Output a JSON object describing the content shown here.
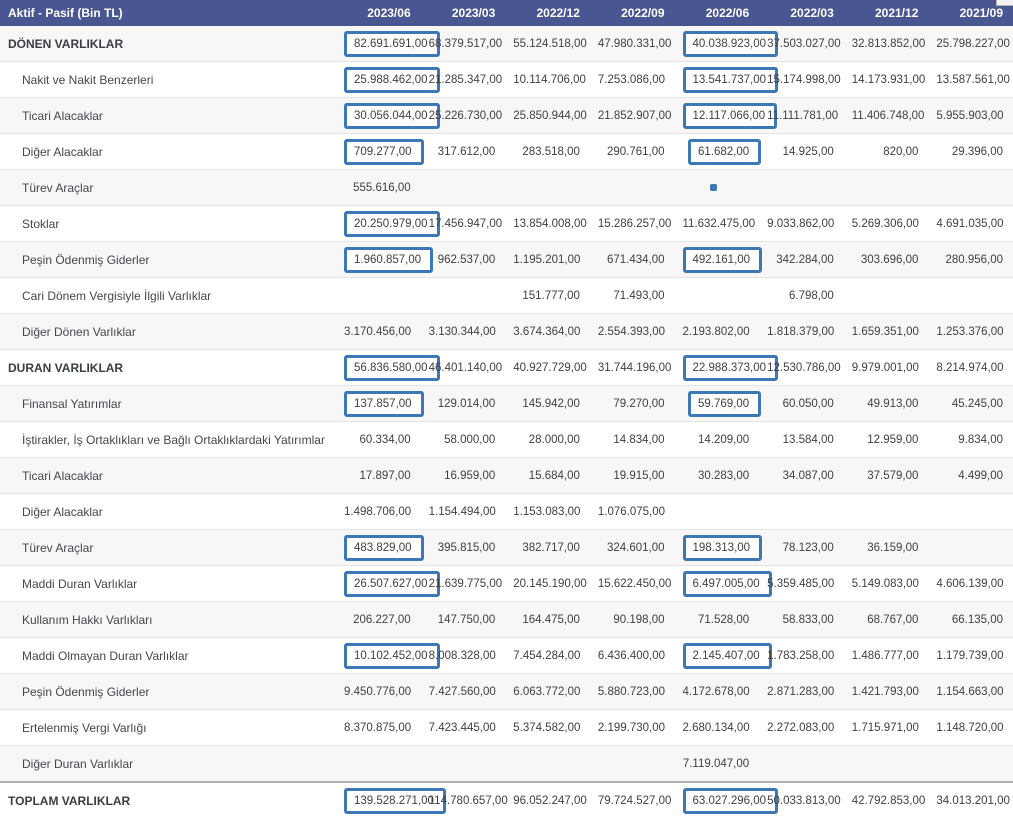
{
  "header": {
    "label_column": "Aktif - Pasif (Bin TL)",
    "columns": [
      "2023/06",
      "2023/03",
      "2022/12",
      "2022/09",
      "2022/06",
      "2022/03",
      "2021/12",
      "2021/09"
    ]
  },
  "colors": {
    "header_background": "#4a5692",
    "header_text": "#ffffff",
    "highlight_border": "#3d77b5",
    "row_stripe": "#f7f7f7",
    "cell_text": "#404040"
  },
  "table": {
    "rows": [
      {
        "label": "DÖNEN VARLIKLAR",
        "section": true,
        "indent": false,
        "values": [
          "82.691.691,00",
          "68.379.517,00",
          "55.124.518,00",
          "47.980.331,00",
          "40.038.923,00",
          "37.503.027,00",
          "32.813.852,00",
          "25.798.227,00"
        ],
        "highlights": [
          0,
          4
        ],
        "dots": []
      },
      {
        "label": "Nakit ve Nakit Benzerleri",
        "section": false,
        "indent": true,
        "values": [
          "25.988.462,00",
          "21.285.347,00",
          "10.114.706,00",
          "7.253.086,00",
          "13.541.737,00",
          "15.174.998,00",
          "14.173.931,00",
          "13.587.561,00"
        ],
        "highlights": [
          0,
          4
        ],
        "dots": []
      },
      {
        "label": "Ticari Alacaklar",
        "section": false,
        "indent": true,
        "values": [
          "30.056.044,00",
          "25.226.730,00",
          "25.850.944,00",
          "21.852.907,00",
          "12.117.066,00",
          "11.111.781,00",
          "11.406.748,00",
          "5.955.903,00"
        ],
        "highlights": [
          0,
          4
        ],
        "dots": []
      },
      {
        "label": "Diğer Alacaklar",
        "section": false,
        "indent": true,
        "values": [
          "709.277,00",
          "317.612,00",
          "283.518,00",
          "290.761,00",
          "61.682,00",
          "14.925,00",
          "820,00",
          "29.396,00"
        ],
        "highlights": [
          0,
          4
        ],
        "dots": []
      },
      {
        "label": "Türev Araçlar",
        "section": false,
        "indent": true,
        "values": [
          "555.616,00",
          "",
          "",
          "",
          "",
          "",
          "",
          ""
        ],
        "highlights": [],
        "dots": [
          4
        ]
      },
      {
        "label": "Stoklar",
        "section": false,
        "indent": true,
        "values": [
          "20.250.979,00",
          "17.456.947,00",
          "13.854.008,00",
          "15.286.257,00",
          "11.632.475,00",
          "9.033.862,00",
          "5.269.306,00",
          "4.691.035,00"
        ],
        "highlights": [
          0
        ],
        "dots": []
      },
      {
        "label": "Peşin Ödenmiş Giderler",
        "section": false,
        "indent": true,
        "values": [
          "1.960.857,00",
          "962.537,00",
          "1.195.201,00",
          "671.434,00",
          "492.161,00",
          "342.284,00",
          "303.696,00",
          "280.956,00"
        ],
        "highlights": [
          0,
          4
        ],
        "dots": []
      },
      {
        "label": "Cari Dönem Vergisiyle İlgili Varlıklar",
        "section": false,
        "indent": true,
        "values": [
          "",
          "",
          "151.777,00",
          "71.493,00",
          "",
          "6.798,00",
          "",
          ""
        ],
        "highlights": [],
        "dots": []
      },
      {
        "label": "Diğer Dönen Varlıklar",
        "section": false,
        "indent": true,
        "values": [
          "3.170.456,00",
          "3.130.344,00",
          "3.674.364,00",
          "2.554.393,00",
          "2.193.802,00",
          "1.818.379,00",
          "1.659.351,00",
          "1.253.376,00"
        ],
        "highlights": [],
        "dots": []
      },
      {
        "label": "DURAN VARLIKLAR",
        "section": true,
        "indent": false,
        "values": [
          "56.836.580,00",
          "46.401.140,00",
          "40.927.729,00",
          "31.744.196,00",
          "22.988.373,00",
          "12.530.786,00",
          "9.979.001,00",
          "8.214.974,00"
        ],
        "highlights": [
          0,
          4
        ],
        "dots": []
      },
      {
        "label": "Finansal Yatırımlar",
        "section": false,
        "indent": true,
        "values": [
          "137.857,00",
          "129.014,00",
          "145.942,00",
          "79.270,00",
          "59.769,00",
          "60.050,00",
          "49.913,00",
          "45.245,00"
        ],
        "highlights": [
          0,
          4
        ],
        "dots": []
      },
      {
        "label": "İştirakler, İş Ortaklıkları ve Bağlı Ortaklıklardaki Yatırımlar",
        "section": false,
        "indent": true,
        "values": [
          "60.334,00",
          "58.000,00",
          "28.000,00",
          "14.834,00",
          "14.209,00",
          "13.584,00",
          "12.959,00",
          "9.834,00"
        ],
        "highlights": [],
        "dots": []
      },
      {
        "label": "Ticari Alacaklar",
        "section": false,
        "indent": true,
        "values": [
          "17.897,00",
          "16.959,00",
          "15.684,00",
          "19.915,00",
          "30.283,00",
          "34.087,00",
          "37.579,00",
          "4.499,00"
        ],
        "highlights": [],
        "dots": []
      },
      {
        "label": "Diğer Alacaklar",
        "section": false,
        "indent": true,
        "values": [
          "1.498.706,00",
          "1.154.494,00",
          "1.153.083,00",
          "1.076.075,00",
          "",
          "",
          "",
          ""
        ],
        "highlights": [],
        "dots": []
      },
      {
        "label": "Türev Araçlar",
        "section": false,
        "indent": true,
        "values": [
          "483.829,00",
          "395.815,00",
          "382.717,00",
          "324.601,00",
          "198.313,00",
          "78.123,00",
          "36.159,00",
          ""
        ],
        "highlights": [
          0,
          4
        ],
        "dots": []
      },
      {
        "label": "Maddi Duran Varlıklar",
        "section": false,
        "indent": true,
        "values": [
          "26.507.627,00",
          "21.639.775,00",
          "20.145.190,00",
          "15.622.450,00",
          "6.497.005,00",
          "5.359.485,00",
          "5.149.083,00",
          "4.606.139,00"
        ],
        "highlights": [
          0,
          4
        ],
        "dots": []
      },
      {
        "label": "Kullanım Hakkı Varlıkları",
        "section": false,
        "indent": true,
        "values": [
          "206.227,00",
          "147.750,00",
          "164.475,00",
          "90.198,00",
          "71.528,00",
          "58.833,00",
          "68.767,00",
          "66.135,00"
        ],
        "highlights": [],
        "dots": []
      },
      {
        "label": "Maddi Olmayan Duran Varlıklar",
        "section": false,
        "indent": true,
        "values": [
          "10.102.452,00",
          "8.008.328,00",
          "7.454.284,00",
          "6.436.400,00",
          "2.145.407,00",
          "1.783.258,00",
          "1.486.777,00",
          "1.179.739,00"
        ],
        "highlights": [
          0,
          4
        ],
        "dots": []
      },
      {
        "label": "Peşin Ödenmiş Giderler",
        "section": false,
        "indent": true,
        "values": [
          "9.450.776,00",
          "7.427.560,00",
          "6.063.772,00",
          "5.880.723,00",
          "4.172.678,00",
          "2.871.283,00",
          "1.421.793,00",
          "1.154.663,00"
        ],
        "highlights": [],
        "dots": []
      },
      {
        "label": "Ertelenmiş Vergi Varlığı",
        "section": false,
        "indent": true,
        "values": [
          "8.370.875,00",
          "7.423.445,00",
          "5.374.582,00",
          "2.199.730,00",
          "2.680.134,00",
          "2.272.083,00",
          "1.715.971,00",
          "1.148.720,00"
        ],
        "highlights": [],
        "dots": []
      },
      {
        "label": "Diğer Duran Varlıklar",
        "section": false,
        "indent": true,
        "values": [
          "",
          "",
          "",
          "",
          "7.119.047,00",
          "",
          "",
          ""
        ],
        "highlights": [],
        "dots": []
      },
      {
        "label": "TOPLAM VARLIKLAR",
        "section": true,
        "indent": false,
        "total": true,
        "values": [
          "139.528.271,00",
          "114.780.657,00",
          "96.052.247,00",
          "79.724.527,00",
          "63.027.296,00",
          "50.033.813,00",
          "42.792.853,00",
          "34.013.201,00"
        ],
        "highlights": [
          0,
          4
        ],
        "dots": []
      }
    ]
  }
}
